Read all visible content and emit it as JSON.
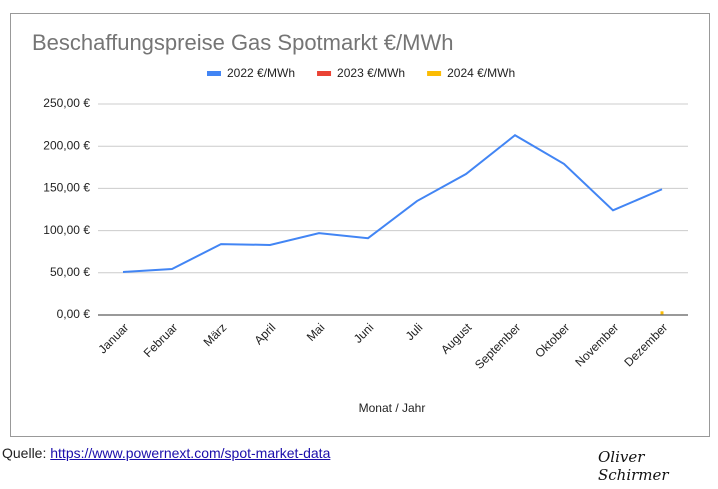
{
  "chart_data": {
    "type": "line",
    "title": "Beschaffungspreise Gas Spotmarkt €/MWh",
    "x_label": "Monat / Jahr",
    "categories": [
      "Januar",
      "Februar",
      "März",
      "April",
      "Mai",
      "Juni",
      "Juli",
      "August",
      "September",
      "Oktober",
      "November",
      "Dezember"
    ],
    "series": [
      {
        "name": "2022 €/MWh",
        "color": "#4285f4",
        "values": [
          51,
          54.5,
          84,
          83,
          97,
          91,
          135,
          167,
          213,
          179,
          124,
          149
        ]
      },
      {
        "name": "2023 €/MWh",
        "color": "#ea4335",
        "values": [
          null,
          null,
          null,
          null,
          null,
          null,
          null,
          null,
          null,
          null,
          null,
          null
        ]
      },
      {
        "name": "2024 €/MWh",
        "color": "#fbbc04",
        "values": [
          null,
          null,
          null,
          null,
          null,
          null,
          null,
          null,
          null,
          null,
          null,
          2
        ]
      }
    ],
    "ylim": [
      0,
      250
    ],
    "yticks": [
      {
        "value": 0,
        "label": "0,00 €"
      },
      {
        "value": 50,
        "label": "50,00 €"
      },
      {
        "value": 100,
        "label": "100,00 €"
      },
      {
        "value": 150,
        "label": "150,00 €"
      },
      {
        "value": 200,
        "label": "200,00 €"
      },
      {
        "value": 250,
        "label": "250,00 €"
      }
    ],
    "grid": true,
    "legend": "top"
  },
  "source": {
    "label": "Quelle:",
    "url": "https://www.powernext.com/spot-market-data"
  },
  "signature": "Oliver Schirmer"
}
